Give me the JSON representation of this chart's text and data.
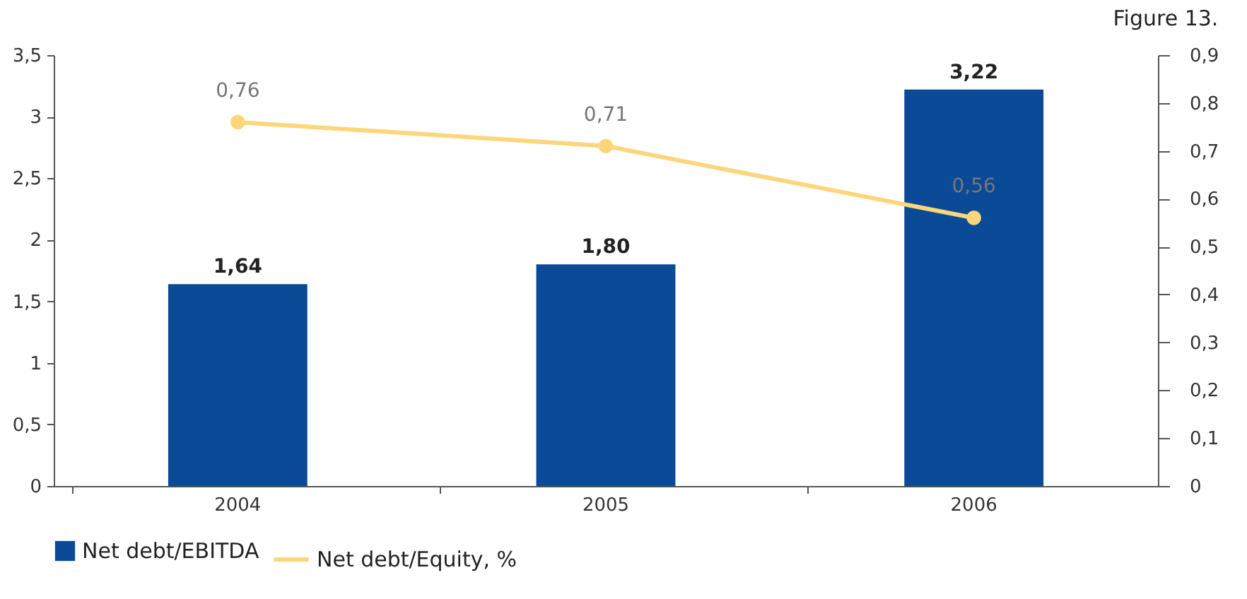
{
  "chart_data": {
    "type": "bar",
    "annotations": [
      "Figure 13."
    ],
    "categories": [
      "2004",
      "2005",
      "2006"
    ],
    "series": [
      {
        "name": "Net debt/EBITDA",
        "color": "#0b4a97",
        "values": [
          1.64,
          1.8,
          3.22
        ],
        "value_labels": [
          "1,64",
          "1,80",
          "3,22"
        ]
      },
      {
        "name": "Net debt/Equity, %",
        "type": "line",
        "axis": "y2",
        "color": "#fcd67a",
        "values": [
          0.76,
          0.71,
          0.56
        ],
        "value_labels": [
          "0,76",
          "0,71",
          "0,56"
        ]
      }
    ],
    "ylim": [
      0,
      3.5
    ],
    "yticks": [
      0,
      {
        "value": 0.5,
        "label": "0,5"
      },
      1,
      {
        "value": 1.5,
        "label": "1,5"
      },
      2,
      {
        "value": 2.5,
        "label": "2,5"
      },
      3,
      {
        "value": 3.5,
        "label": "3,5"
      }
    ],
    "y2lim": [
      0,
      0.9
    ],
    "y2ticks": [
      0,
      {
        "value": 0.1,
        "label": "0,1"
      },
      {
        "value": 0.2,
        "label": "0,2"
      },
      {
        "value": 0.3,
        "label": "0,3"
      },
      {
        "value": 0.4,
        "label": "0,4"
      },
      {
        "value": 0.5,
        "label": "0,5"
      },
      {
        "value": 0.6,
        "label": "0,6"
      },
      {
        "value": 0.7,
        "label": "0,7"
      },
      {
        "value": 0.8,
        "label": "0,8"
      },
      {
        "value": 0.9,
        "label": "0,9"
      }
    ],
    "grid": false,
    "legend": "bottom",
    "marker": "circle",
    "line_style": "solid"
  }
}
